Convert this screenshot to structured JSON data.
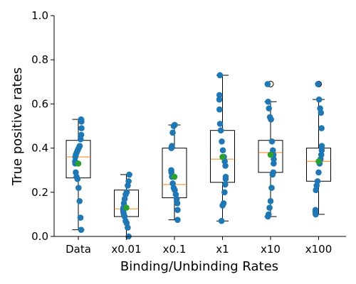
{
  "chart_data": {
    "type": "box",
    "xlabel": "Binding/Unbinding Rates",
    "ylabel": "True positive rates",
    "ylim": [
      0,
      1.0
    ],
    "yticks": [
      0.0,
      0.2,
      0.4,
      0.6,
      0.8,
      1.0
    ],
    "ytick_labels": [
      "0.0",
      "0.2",
      "0.4",
      "0.6",
      "0.8",
      "1.0"
    ],
    "grid": false,
    "colors": {
      "points": "#1f77b4",
      "median": "#ff7f0e",
      "mean": "#2ca02c",
      "box": "#000000"
    },
    "categories": [
      "Data",
      "x0.01",
      "x0.1",
      "x1",
      "x10",
      "x100"
    ],
    "groups": [
      {
        "label": "Data",
        "box": {
          "whisker_low": 0.03,
          "q1": 0.265,
          "median": 0.36,
          "q3": 0.435,
          "whisker_high": 0.53
        },
        "outliers": [],
        "mean": 0.33,
        "points": [
          0.53,
          0.52,
          0.49,
          0.46,
          0.44,
          0.41,
          0.4,
          0.39,
          0.38,
          0.37,
          0.36,
          0.34,
          0.33,
          0.29,
          0.27,
          0.26,
          0.22,
          0.16,
          0.085,
          0.03
        ]
      },
      {
        "label": "x0.01",
        "box": {
          "whisker_low": 0.0,
          "q1": 0.09,
          "median": 0.125,
          "q3": 0.21,
          "whisker_high": 0.28
        },
        "outliers": [],
        "mean": 0.13,
        "points": [
          0.28,
          0.25,
          0.23,
          0.2,
          0.19,
          0.17,
          0.15,
          0.13,
          0.12,
          0.11,
          0.1,
          0.09,
          0.07,
          0.06,
          0.04,
          0.0
        ]
      },
      {
        "label": "x0.1",
        "box": {
          "whisker_low": 0.075,
          "q1": 0.175,
          "median": 0.235,
          "q3": 0.4,
          "whisker_high": 0.505
        },
        "outliers": [],
        "mean": 0.27,
        "points": [
          0.505,
          0.5,
          0.47,
          0.41,
          0.4,
          0.3,
          0.29,
          0.27,
          0.24,
          0.22,
          0.21,
          0.19,
          0.17,
          0.15,
          0.12,
          0.075
        ]
      },
      {
        "label": "x1",
        "box": {
          "whisker_low": 0.07,
          "q1": 0.245,
          "median": 0.35,
          "q3": 0.48,
          "whisker_high": 0.73
        },
        "outliers": [],
        "mean": 0.36,
        "points": [
          0.73,
          0.64,
          0.62,
          0.575,
          0.51,
          0.48,
          0.43,
          0.39,
          0.36,
          0.34,
          0.32,
          0.27,
          0.26,
          0.235,
          0.2,
          0.15,
          0.14,
          0.07
        ]
      },
      {
        "label": "x10",
        "box": {
          "whisker_low": 0.09,
          "q1": 0.29,
          "median": 0.38,
          "q3": 0.435,
          "whisker_high": 0.61
        },
        "outliers": [
          0.69
        ],
        "mean": 0.37,
        "points": [
          0.69,
          0.61,
          0.58,
          0.54,
          0.53,
          0.43,
          0.39,
          0.37,
          0.35,
          0.33,
          0.29,
          0.28,
          0.22,
          0.16,
          0.13,
          0.1,
          0.09
        ]
      },
      {
        "label": "x100",
        "box": {
          "whisker_low": 0.1,
          "q1": 0.25,
          "median": 0.34,
          "q3": 0.4,
          "whisker_high": 0.62
        },
        "outliers": [
          0.69
        ],
        "mean": 0.34,
        "points": [
          0.69,
          0.62,
          0.58,
          0.56,
          0.49,
          0.41,
          0.39,
          0.37,
          0.35,
          0.33,
          0.29,
          0.25,
          0.23,
          0.21,
          0.12,
          0.11,
          0.1
        ]
      }
    ]
  }
}
